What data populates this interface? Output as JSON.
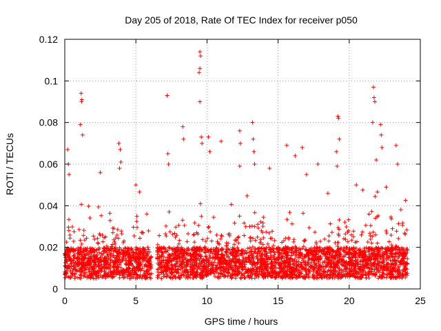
{
  "chart_data": {
    "type": "scatter",
    "title": "Day 205 of 2018, Rate Of TEC Index for receiver p050",
    "xlabel": "GPS time / hours",
    "ylabel": "ROTI / TECUs",
    "xlim": [
      0,
      25
    ],
    "ylim": [
      0,
      0.12
    ],
    "xticks": [
      0,
      5,
      10,
      15,
      20,
      25
    ],
    "xtick_labels": [
      "0",
      "5",
      "10",
      "15",
      "20",
      "25"
    ],
    "yticks": [
      0,
      0.02,
      0.04,
      0.06,
      0.08,
      0.1,
      0.12
    ],
    "ytick_labels": [
      "0",
      "0.02",
      "0.04",
      "0.06",
      "0.08",
      "0.1",
      "0.12"
    ],
    "grid": true,
    "marker": "+",
    "color": "#ff0000",
    "series": [
      {
        "name": "p050",
        "coverage_segments": [
          [
            0.0,
            6.1
          ],
          [
            6.5,
            8.7
          ],
          [
            8.8,
            24.1
          ]
        ],
        "baseline_range": [
          0.005,
          0.02
        ],
        "highlight_points": [
          {
            "x": 1.15,
            "y": 0.094
          },
          {
            "x": 1.2,
            "y": 0.091
          },
          {
            "x": 1.18,
            "y": 0.09
          },
          {
            "x": 1.1,
            "y": 0.079
          },
          {
            "x": 1.25,
            "y": 0.074
          },
          {
            "x": 0.2,
            "y": 0.067
          },
          {
            "x": 0.25,
            "y": 0.06
          },
          {
            "x": 0.3,
            "y": 0.055
          },
          {
            "x": 3.8,
            "y": 0.07
          },
          {
            "x": 3.9,
            "y": 0.067
          },
          {
            "x": 3.95,
            "y": 0.061
          },
          {
            "x": 3.85,
            "y": 0.058
          },
          {
            "x": 7.2,
            "y": 0.093
          },
          {
            "x": 7.25,
            "y": 0.065
          },
          {
            "x": 7.3,
            "y": 0.06
          },
          {
            "x": 8.3,
            "y": 0.078
          },
          {
            "x": 8.35,
            "y": 0.072
          },
          {
            "x": 9.5,
            "y": 0.114
          },
          {
            "x": 9.55,
            "y": 0.112
          },
          {
            "x": 9.5,
            "y": 0.106
          },
          {
            "x": 9.45,
            "y": 0.104
          },
          {
            "x": 9.5,
            "y": 0.09
          },
          {
            "x": 9.6,
            "y": 0.073
          },
          {
            "x": 9.65,
            "y": 0.07
          },
          {
            "x": 10.1,
            "y": 0.073
          },
          {
            "x": 10.2,
            "y": 0.066
          },
          {
            "x": 11.0,
            "y": 0.071
          },
          {
            "x": 12.3,
            "y": 0.076
          },
          {
            "x": 12.35,
            "y": 0.07
          },
          {
            "x": 12.3,
            "y": 0.059
          },
          {
            "x": 13.2,
            "y": 0.08
          },
          {
            "x": 13.25,
            "y": 0.072
          },
          {
            "x": 13.3,
            "y": 0.066
          },
          {
            "x": 13.35,
            "y": 0.06
          },
          {
            "x": 15.6,
            "y": 0.069
          },
          {
            "x": 16.2,
            "y": 0.064
          },
          {
            "x": 16.7,
            "y": 0.068
          },
          {
            "x": 17.8,
            "y": 0.06
          },
          {
            "x": 19.2,
            "y": 0.083
          },
          {
            "x": 19.25,
            "y": 0.082
          },
          {
            "x": 19.3,
            "y": 0.072
          },
          {
            "x": 19.1,
            "y": 0.066
          },
          {
            "x": 19.15,
            "y": 0.059
          },
          {
            "x": 21.7,
            "y": 0.097
          },
          {
            "x": 21.75,
            "y": 0.092
          },
          {
            "x": 21.8,
            "y": 0.09
          },
          {
            "x": 21.65,
            "y": 0.08
          },
          {
            "x": 22.2,
            "y": 0.079
          },
          {
            "x": 22.25,
            "y": 0.074
          },
          {
            "x": 22.3,
            "y": 0.068
          },
          {
            "x": 21.9,
            "y": 0.062
          },
          {
            "x": 23.3,
            "y": 0.069
          },
          {
            "x": 23.4,
            "y": 0.06
          },
          {
            "x": 20.5,
            "y": 0.05
          },
          {
            "x": 2.5,
            "y": 0.056
          },
          {
            "x": 5.0,
            "y": 0.05
          },
          {
            "x": 14.4,
            "y": 0.058
          },
          {
            "x": 17.0,
            "y": 0.055
          },
          {
            "x": 18.5,
            "y": 0.046
          }
        ]
      }
    ]
  }
}
